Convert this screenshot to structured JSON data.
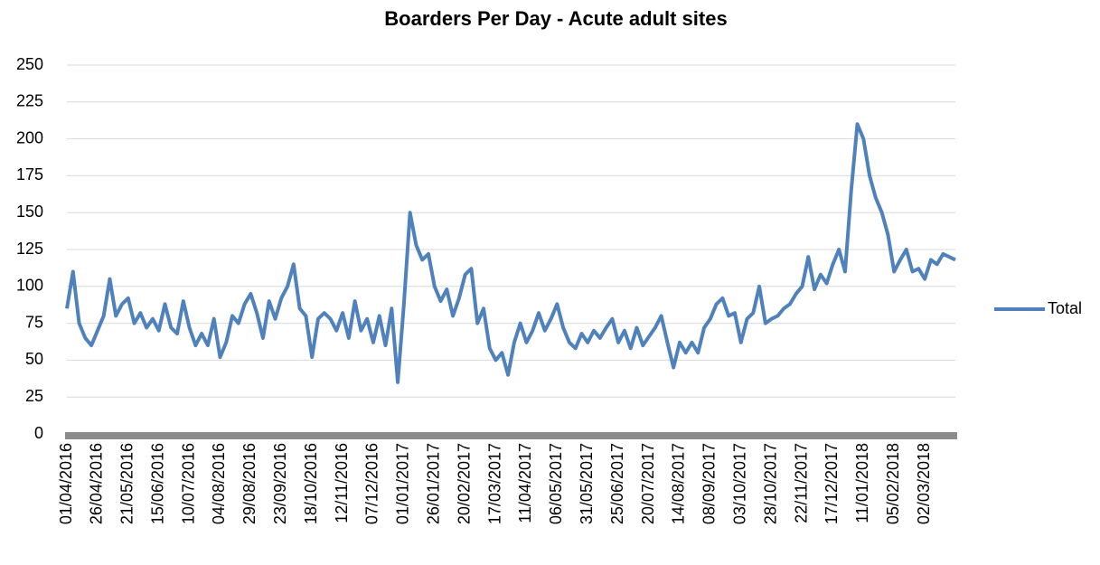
{
  "chart_data": {
    "type": "line",
    "title": "Boarders Per Day - Acute adult sites",
    "categories": [
      "01/04/2016",
      null,
      null,
      null,
      null,
      "26/04/2016",
      null,
      null,
      null,
      null,
      "21/05/2016",
      null,
      null,
      null,
      null,
      "15/06/2016",
      null,
      null,
      null,
      null,
      "10/07/2016",
      null,
      null,
      null,
      null,
      "04/08/2016",
      null,
      null,
      null,
      null,
      "29/08/2016",
      null,
      null,
      null,
      null,
      "23/09/2016",
      null,
      null,
      null,
      null,
      "18/10/2016",
      null,
      null,
      null,
      null,
      "12/11/2016",
      null,
      null,
      null,
      null,
      "07/12/2016",
      null,
      null,
      null,
      null,
      "01/01/2017",
      null,
      null,
      null,
      null,
      "26/01/2017",
      null,
      null,
      null,
      null,
      "20/02/2017",
      null,
      null,
      null,
      null,
      "17/03/2017",
      null,
      null,
      null,
      null,
      "11/04/2017",
      null,
      null,
      null,
      null,
      "06/05/2017",
      null,
      null,
      null,
      null,
      "31/05/2017",
      null,
      null,
      null,
      null,
      "25/06/2017",
      null,
      null,
      null,
      null,
      "20/07/2017",
      null,
      null,
      null,
      null,
      "14/08/2017",
      null,
      null,
      null,
      null,
      "08/09/2017",
      null,
      null,
      null,
      null,
      "03/10/2017",
      null,
      null,
      null,
      null,
      "28/10/2017",
      null,
      null,
      null,
      null,
      "22/11/2017",
      null,
      null,
      null,
      null,
      "17/12/2017",
      null,
      null,
      null,
      null,
      "11/01/2018",
      null,
      null,
      null,
      null,
      "05/02/2018",
      null,
      null,
      null,
      null,
      "02/03/2018",
      null,
      null,
      null,
      null,
      null
    ],
    "series": [
      {
        "name": "Total",
        "color": "#4f81bd",
        "values": [
          85,
          110,
          75,
          65,
          60,
          70,
          80,
          105,
          80,
          88,
          92,
          75,
          82,
          72,
          78,
          70,
          88,
          72,
          68,
          90,
          72,
          60,
          68,
          60,
          78,
          52,
          62,
          80,
          75,
          88,
          95,
          82,
          65,
          90,
          78,
          92,
          100,
          115,
          85,
          80,
          52,
          78,
          82,
          78,
          70,
          82,
          65,
          90,
          70,
          78,
          62,
          80,
          60,
          85,
          35,
          88,
          150,
          128,
          118,
          122,
          100,
          90,
          98,
          80,
          92,
          108,
          112,
          75,
          85,
          58,
          50,
          55,
          40,
          62,
          75,
          62,
          70,
          82,
          70,
          78,
          88,
          72,
          62,
          58,
          68,
          62,
          70,
          65,
          72,
          78,
          62,
          70,
          58,
          72,
          60,
          66,
          72,
          80,
          62,
          45,
          62,
          55,
          62,
          55,
          72,
          78,
          88,
          92,
          80,
          82,
          62,
          78,
          82,
          100,
          75,
          78,
          80,
          85,
          88,
          95,
          100,
          120,
          98,
          108,
          102,
          115,
          125,
          110,
          165,
          210,
          200,
          175,
          160,
          150,
          135,
          110,
          118,
          125,
          110,
          112,
          105,
          118,
          115,
          122,
          120,
          118
        ]
      }
    ],
    "ylim": [
      0,
      250
    ],
    "yticks": [
      0,
      25,
      50,
      75,
      100,
      125,
      150,
      175,
      200,
      225,
      250
    ],
    "grid": true,
    "legend": "right"
  }
}
